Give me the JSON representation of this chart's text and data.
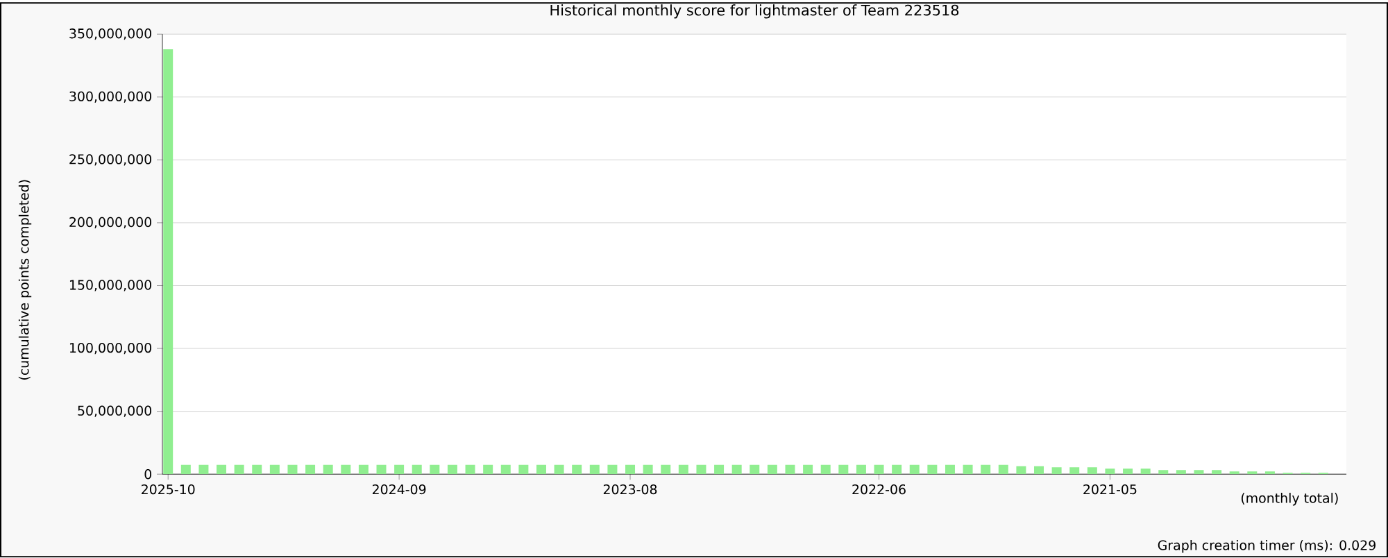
{
  "chart_data": {
    "type": "bar",
    "title": "Historical monthly score for lightmaster of Team 223518",
    "ylabel": "(cumulative points completed)",
    "xlabel": "(monthly total)",
    "annotations": [
      "Graph creation timer (ms): 0.029"
    ],
    "categories": [
      "2025-10",
      null,
      null,
      null,
      null,
      null,
      null,
      null,
      null,
      null,
      null,
      null,
      null,
      "2024-09",
      null,
      null,
      null,
      null,
      null,
      null,
      null,
      null,
      null,
      null,
      null,
      null,
      "2023-08",
      null,
      null,
      null,
      null,
      null,
      null,
      null,
      null,
      null,
      null,
      null,
      null,
      null,
      "2022-06",
      null,
      null,
      null,
      null,
      null,
      null,
      null,
      null,
      null,
      null,
      null,
      null,
      "2021-05",
      null,
      null,
      null,
      null,
      null,
      null,
      null,
      null,
      null,
      null,
      null,
      null
    ],
    "values": [
      338000000,
      7400000,
      7400000,
      7400000,
      7400000,
      7400000,
      7400000,
      7400000,
      7400000,
      7400000,
      7400000,
      7400000,
      7400000,
      7400000,
      7400000,
      7400000,
      7400000,
      7400000,
      7400000,
      7400000,
      7400000,
      7400000,
      7400000,
      7400000,
      7400000,
      7400000,
      7400000,
      7400000,
      7400000,
      7400000,
      7400000,
      7400000,
      7400000,
      7400000,
      7400000,
      7400000,
      7400000,
      7400000,
      7400000,
      7400000,
      7400000,
      7400000,
      7400000,
      7400000,
      7400000,
      7400000,
      7400000,
      7400000,
      6300000,
      6300000,
      5500000,
      5500000,
      5500000,
      4400000,
      4400000,
      4400000,
      3300000,
      3300000,
      3300000,
      3300000,
      2200000,
      2200000,
      2200000,
      1100000,
      1100000,
      1100000
    ],
    "color": "#90ee90",
    "ylim": [
      0,
      350000000
    ],
    "yticks": [
      {
        "value": 0,
        "label": "0"
      },
      {
        "value": 50000000,
        "label": "50,000,000"
      },
      {
        "value": 100000000,
        "label": "100,000,000"
      },
      {
        "value": 150000000,
        "label": "150,000,000"
      },
      {
        "value": 200000000,
        "label": "200,000,000"
      },
      {
        "value": 250000000,
        "label": "250,000,000"
      },
      {
        "value": 300000000,
        "label": "300,000,000"
      },
      {
        "value": 350000000,
        "label": "350,000,000"
      }
    ],
    "grid": "y"
  }
}
